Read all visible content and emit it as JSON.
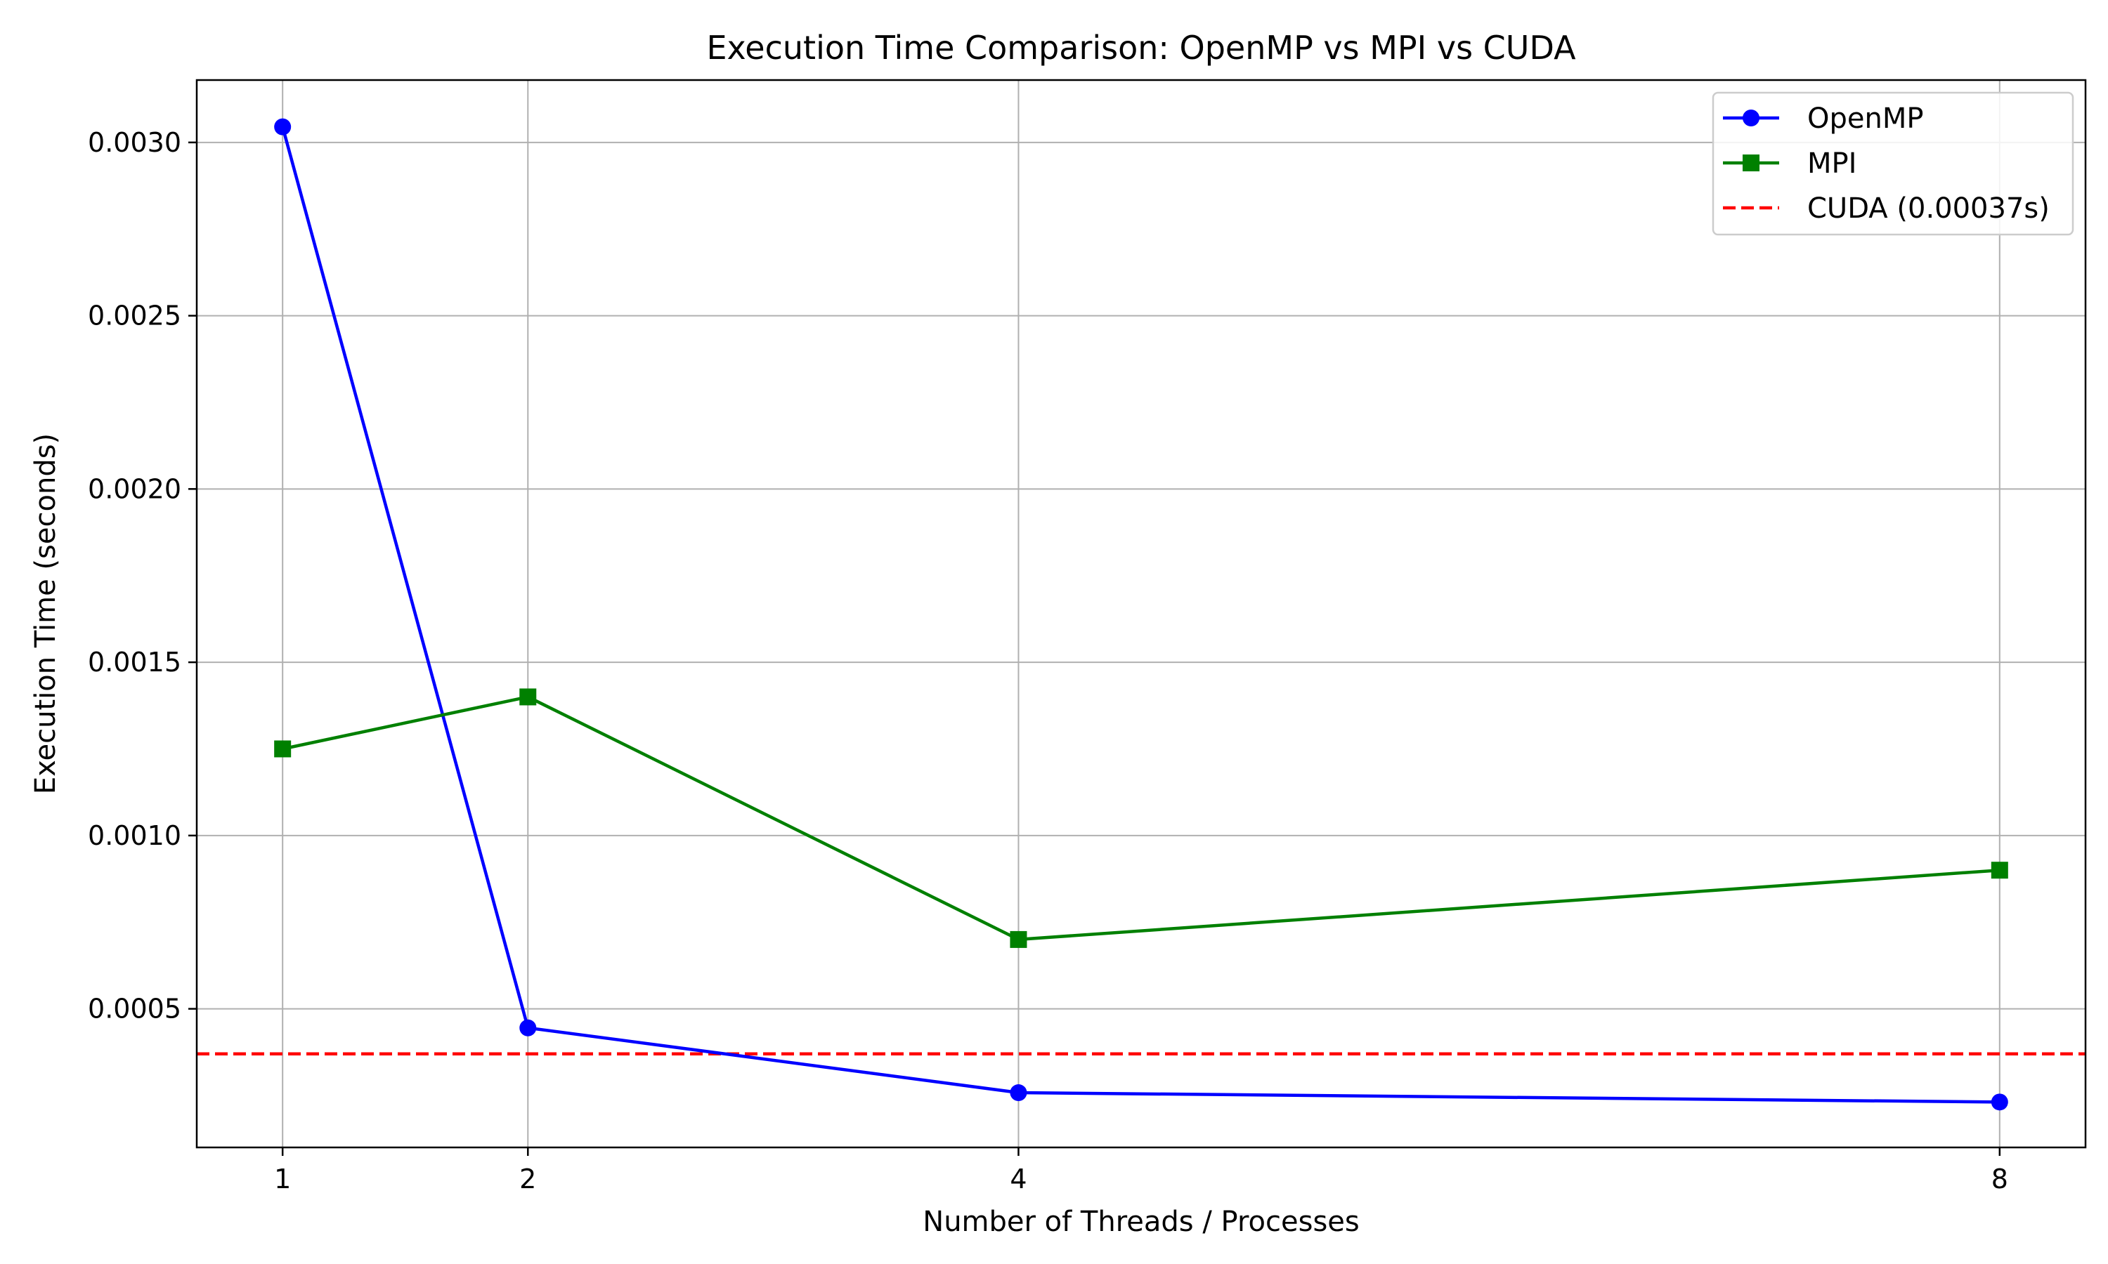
{
  "chart_data": {
    "type": "line",
    "title": "Execution Time Comparison: OpenMP vs MPI vs CUDA",
    "xlabel": "Number of Threads / Processes",
    "ylabel": "Execution Time (seconds)",
    "x": [
      1,
      2,
      4,
      8
    ],
    "x_ticks": [
      {
        "value": 1,
        "label": "1"
      },
      {
        "value": 2,
        "label": "2"
      },
      {
        "value": 4,
        "label": "4"
      },
      {
        "value": 8,
        "label": "8"
      }
    ],
    "y_ticks": [
      {
        "value": 0.0005,
        "label": "0.0005"
      },
      {
        "value": 0.001,
        "label": "0.0010"
      },
      {
        "value": 0.0015,
        "label": "0.0015"
      },
      {
        "value": 0.002,
        "label": "0.0020"
      },
      {
        "value": 0.0025,
        "label": "0.0025"
      },
      {
        "value": 0.003,
        "label": "0.0030"
      }
    ],
    "xlim": [
      0.65,
      8.35
    ],
    "ylim": [
      0.0001,
      0.00318
    ],
    "grid": true,
    "legend_position": "top-right",
    "series": [
      {
        "name": "OpenMP",
        "color": "#0000ff",
        "marker": "circle",
        "style": "solid",
        "values": [
          0.003045,
          0.000445,
          0.000258,
          0.000231
        ]
      },
      {
        "name": "MPI",
        "color": "#008000",
        "marker": "square",
        "style": "solid",
        "values": [
          0.00125,
          0.0014,
          0.0007,
          0.0009
        ]
      }
    ],
    "reference_lines": [
      {
        "name": "CUDA (0.00037s)",
        "color": "#ff0000",
        "style": "dashed",
        "value": 0.00037
      }
    ]
  }
}
